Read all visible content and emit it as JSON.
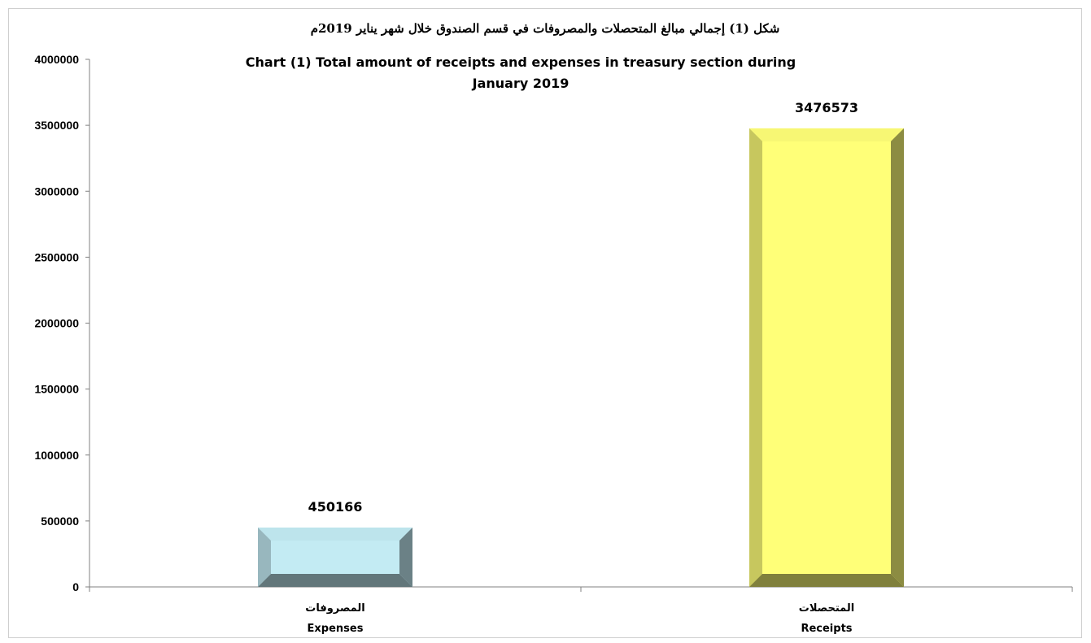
{
  "chart_data": {
    "type": "bar",
    "title": "شكل (1) إجمالي مبالغ المتحصلات والمصروفات في قسم الصندوق خلال شهر يناير 2019م",
    "subtitle": [
      "Chart (1) Total amount of receipts and expenses in treasury section during",
      "January 2019"
    ],
    "categories": [
      {
        "ar": "المصروفات",
        "en": "Expenses"
      },
      {
        "ar": "المتحصلات",
        "en": "Receipts"
      }
    ],
    "values": [
      450166,
      3476573
    ],
    "data_labels": [
      "450166",
      "3476573"
    ],
    "ylim": [
      0,
      4000000
    ],
    "yticks": [
      0,
      500000,
      1000000,
      1500000,
      2000000,
      2500000,
      3000000,
      3500000,
      4000000
    ],
    "ytick_labels": [
      "0",
      "500000",
      "1000000",
      "1500000",
      "2000000",
      "2500000",
      "3000000",
      "3500000",
      "4000000"
    ],
    "grid": false,
    "legend": "none",
    "colors": [
      "#c3ebf3",
      "#ffff78"
    ]
  }
}
